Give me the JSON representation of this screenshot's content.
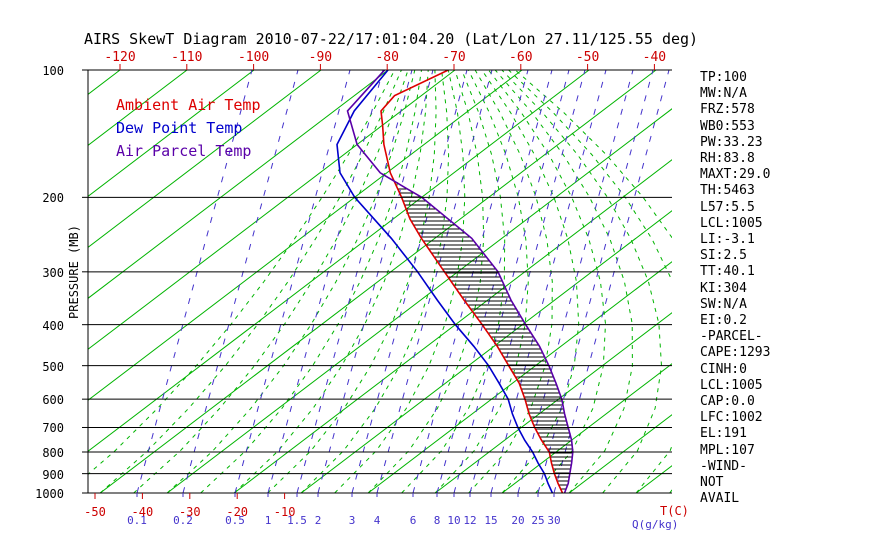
{
  "title": "AIRS SkewT Diagram 2010-07-22/17:01:04.20 (Lat/Lon 27.11/125.55 deg)",
  "legend": {
    "items": [
      {
        "id": "ambient",
        "label": "Ambient Air Temp",
        "color": "#dd0000"
      },
      {
        "id": "dewpoint",
        "label": "Dew Point Temp",
        "color": "#0000cc"
      },
      {
        "id": "parcel",
        "label": "Air Parcel Temp",
        "color": "#5a00a8"
      }
    ]
  },
  "axes": {
    "pressure_label": "PRESSURE (MB)",
    "temp_unit_label": "T(C)",
    "mixing_unit_label": "Q(g/kg)"
  },
  "stats": {
    "lines": [
      "TP:100",
      "MW:N/A",
      "FRZ:578",
      "WB0:553",
      "PW:33.23",
      "RH:83.8",
      "MAXT:29.0",
      "TH:5463",
      "L57:5.5",
      "LCL:1005",
      "LI:-3.1",
      "SI:2.5",
      "TT:40.1",
      "KI:304",
      "SW:N/A",
      "EI:0.2",
      "-PARCEL-",
      "CAPE:1293",
      "CINH:0",
      "LCL:1005",
      "CAP:0.0",
      "LFC:1002",
      "EL:191",
      "MPL:107",
      "-WIND-",
      "NOT",
      "AVAIL"
    ]
  },
  "chart_data": {
    "type": "line",
    "title": "AIRS SkewT Diagram 2010-07-22/17:01:04.20 (Lat/Lon 27.11/125.55 deg)",
    "y_axis": {
      "label": "PRESSURE (MB)",
      "scale": "log",
      "range": [
        100,
        1000
      ],
      "ticks": [
        100,
        200,
        300,
        400,
        500,
        600,
        700,
        800,
        900,
        1000
      ]
    },
    "x_axis": {
      "label": "T(C)",
      "top_ticks_c": [
        -120,
        -110,
        -100,
        -90,
        -80,
        -70,
        -60,
        -50,
        -40
      ],
      "bottom_ticks_c": [
        -50,
        -40,
        -30,
        -20,
        -10
      ]
    },
    "mixing_ratio_axis": {
      "label": "Q(g/kg)",
      "ticks_gkg": [
        0.1,
        0.2,
        0.5,
        1,
        1.5,
        2,
        3,
        4,
        6,
        8,
        10,
        12,
        15,
        20,
        25,
        30
      ]
    },
    "isotherms_c": {
      "min": -120,
      "max": 45,
      "step": 10,
      "color": "#00b400"
    },
    "moist_adiabats_c": {
      "min": -45,
      "max": 45,
      "step": 5,
      "color": "#00b400"
    },
    "mixing_line_color": "#4433cc",
    "series": [
      {
        "id": "ambient",
        "name": "Ambient Air Temp",
        "color": "#dd0000",
        "points_p_t": [
          [
            1000,
            29
          ],
          [
            950,
            26.5
          ],
          [
            900,
            24
          ],
          [
            850,
            21.5
          ],
          [
            800,
            19
          ],
          [
            750,
            15.5
          ],
          [
            700,
            12
          ],
          [
            650,
            8.5
          ],
          [
            600,
            5
          ],
          [
            550,
            1
          ],
          [
            500,
            -4
          ],
          [
            450,
            -9.5
          ],
          [
            400,
            -16
          ],
          [
            350,
            -23.5
          ],
          [
            300,
            -32
          ],
          [
            250,
            -42
          ],
          [
            225,
            -47.5
          ],
          [
            200,
            -53
          ],
          [
            175,
            -59.5
          ],
          [
            150,
            -66
          ],
          [
            135,
            -70
          ],
          [
            125,
            -73
          ],
          [
            115,
            -74
          ],
          [
            100,
            -71
          ]
        ]
      },
      {
        "id": "dewpoint",
        "name": "Dew Point Temp",
        "color": "#0000cc",
        "points_p_t": [
          [
            1000,
            27.5
          ],
          [
            950,
            25
          ],
          [
            900,
            22.5
          ],
          [
            850,
            19.5
          ],
          [
            800,
            16.5
          ],
          [
            750,
            13
          ],
          [
            700,
            9.5
          ],
          [
            650,
            6
          ],
          [
            600,
            2.5
          ],
          [
            550,
            -2
          ],
          [
            500,
            -7
          ],
          [
            450,
            -13
          ],
          [
            400,
            -20
          ],
          [
            350,
            -27.5
          ],
          [
            300,
            -36
          ],
          [
            250,
            -46.5
          ],
          [
            200,
            -60
          ],
          [
            175,
            -67
          ],
          [
            150,
            -73
          ],
          [
            125,
            -77
          ],
          [
            100,
            -80
          ]
        ]
      },
      {
        "id": "parcel",
        "name": "Air Parcel Temp",
        "color": "#5a00a8",
        "points_p_t": [
          [
            1000,
            29.3
          ],
          [
            950,
            28
          ],
          [
            900,
            26.3
          ],
          [
            850,
            24.5
          ],
          [
            800,
            22.5
          ],
          [
            750,
            20
          ],
          [
            700,
            17
          ],
          [
            650,
            13.8
          ],
          [
            600,
            10.5
          ],
          [
            550,
            6.5
          ],
          [
            500,
            2
          ],
          [
            450,
            -3.2
          ],
          [
            400,
            -9.5
          ],
          [
            350,
            -16.5
          ],
          [
            300,
            -24
          ],
          [
            250,
            -34.5
          ],
          [
            200,
            -50
          ],
          [
            191,
            -53.8
          ],
          [
            175,
            -61
          ],
          [
            150,
            -70
          ],
          [
            125,
            -78
          ],
          [
            100,
            -80.5
          ]
        ]
      }
    ],
    "cape_hatch": {
      "between": [
        "parcel",
        "ambient"
      ],
      "pressure_bottom": 1000,
      "pressure_top": 191,
      "color": "#000000"
    }
  }
}
